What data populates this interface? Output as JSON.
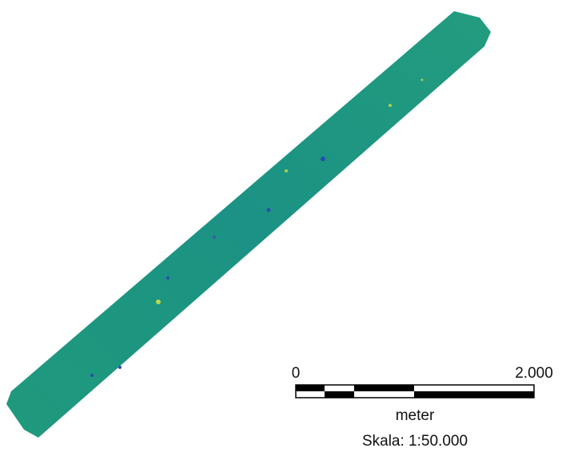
{
  "map": {
    "scale_bar": {
      "start_label": "0",
      "end_label": "2.000",
      "unit": "meter",
      "scale_text": "Skala: 1:50.000"
    }
  }
}
